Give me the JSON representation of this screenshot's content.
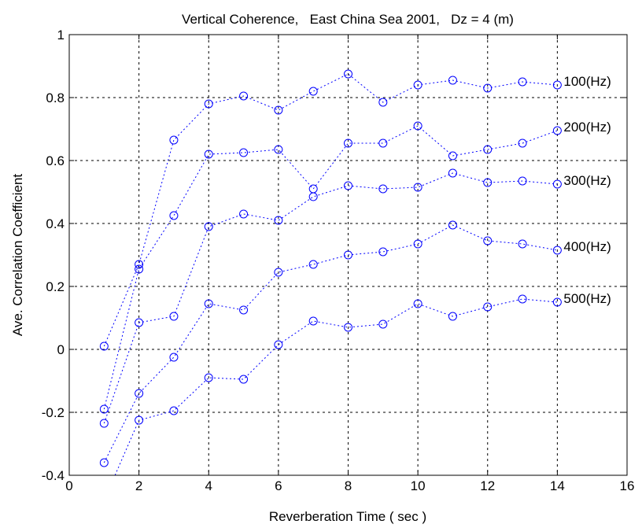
{
  "chart_data": {
    "type": "line",
    "title": "Vertical Coherence,   East China Sea 2001,   Dz = 4 (m)",
    "xlabel": "Reverberation Time ( sec )",
    "ylabel": "Ave. Correlation Coefficient",
    "xlim": [
      0,
      16
    ],
    "ylim": [
      -0.4,
      1
    ],
    "x_ticks": [
      0,
      2,
      4,
      6,
      8,
      10,
      12,
      14,
      16
    ],
    "y_ticks": [
      -0.4,
      -0.2,
      0,
      0.2,
      0.4,
      0.6,
      0.8,
      1
    ],
    "x_tick_labels": [
      "0",
      "2",
      "4",
      "6",
      "8",
      "10",
      "12",
      "14",
      "16"
    ],
    "y_tick_labels": [
      "-0.4",
      "-0.2",
      "0",
      "0.2",
      "0.4",
      "0.6",
      "0.8",
      "1"
    ],
    "grid": true,
    "line_style": "dotted",
    "marker": "circle",
    "color": "#0000ff",
    "x": [
      1,
      2,
      3,
      4,
      5,
      6,
      7,
      8,
      9,
      10,
      11,
      12,
      13,
      14
    ],
    "series": [
      {
        "name": "100(Hz)",
        "values": [
          0.01,
          0.27,
          0.665,
          0.78,
          0.805,
          0.76,
          0.82,
          0.875,
          0.785,
          0.84,
          0.855,
          0.83,
          0.85,
          0.84
        ]
      },
      {
        "name": "200(Hz)",
        "values": [
          -0.19,
          0.255,
          0.425,
          0.62,
          0.625,
          0.635,
          0.51,
          0.655,
          0.655,
          0.71,
          0.615,
          0.635,
          0.655,
          0.695
        ]
      },
      {
        "name": "300(Hz)",
        "values": [
          -0.235,
          0.085,
          0.105,
          0.39,
          0.43,
          0.41,
          0.485,
          0.52,
          0.51,
          0.515,
          0.56,
          0.53,
          0.535,
          0.525
        ]
      },
      {
        "name": "400(Hz)",
        "values": [
          -0.36,
          -0.14,
          -0.025,
          0.145,
          0.125,
          0.245,
          0.27,
          0.3,
          0.31,
          0.335,
          0.395,
          0.345,
          0.335,
          0.315
        ]
      },
      {
        "name": "500(Hz)",
        "values": [
          -0.48,
          -0.225,
          -0.195,
          -0.09,
          -0.095,
          0.015,
          0.09,
          0.07,
          0.08,
          0.145,
          0.105,
          0.135,
          0.16,
          0.15
        ]
      }
    ]
  }
}
